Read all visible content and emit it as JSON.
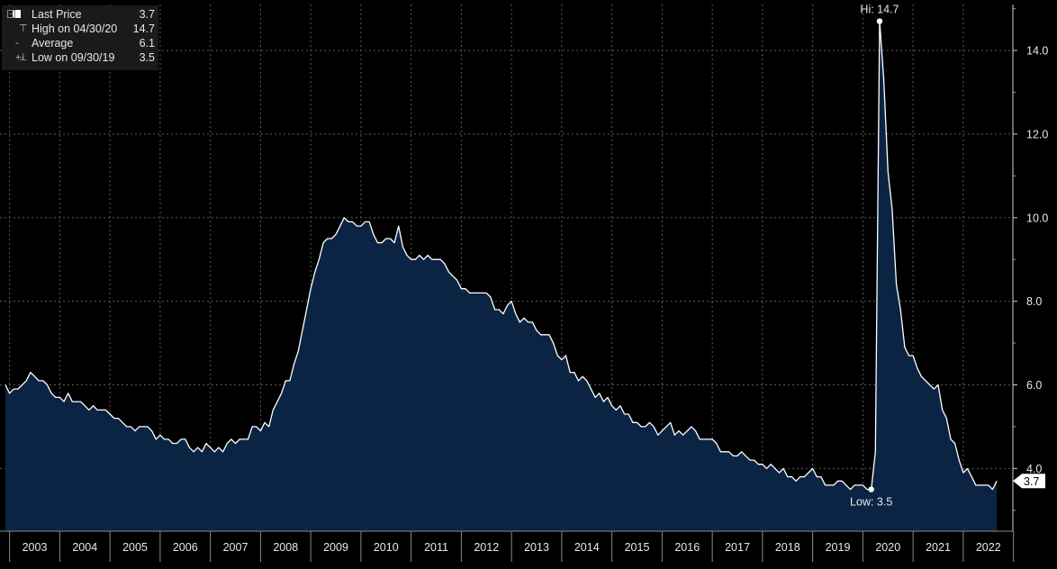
{
  "legend": {
    "rows": [
      {
        "label": "Last Price",
        "value": "3.7",
        "icon": "square-swatch-icon"
      },
      {
        "label": "High on 04/30/20",
        "value": "14.7",
        "icon": "high-marker-icon"
      },
      {
        "label": "Average",
        "value": "6.1",
        "icon": "average-marker-icon"
      },
      {
        "label": "Low on 09/30/19",
        "value": "3.5",
        "icon": "low-marker-icon"
      }
    ]
  },
  "colors": {
    "background": "#000000",
    "area_fill": "#0c2444",
    "line": "#ffffff",
    "grid": "#5a5a5a",
    "text": "#e8e8e8"
  },
  "chart_data": {
    "type": "area",
    "title": "",
    "xlabel": "",
    "ylabel": "",
    "ylim": [
      2.5,
      15.1
    ],
    "y_ticks": [
      "4.0",
      "6.0",
      "8.0",
      "10.0",
      "12.0",
      "14.0"
    ],
    "x_tick_labels": [
      "2003",
      "2004",
      "2005",
      "2006",
      "2007",
      "2008",
      "2009",
      "2010",
      "2011",
      "2012",
      "2013",
      "2014",
      "2015",
      "2016",
      "2017",
      "2018",
      "2019",
      "2020",
      "2021",
      "2022"
    ],
    "grid": true,
    "x_start": "2002-12",
    "x_end": "2022-06",
    "series": [
      {
        "values": [
          6.0,
          5.8,
          5.9,
          5.9,
          6.0,
          6.1,
          6.3,
          6.2,
          6.1,
          6.1,
          6.0,
          5.8,
          5.7,
          5.7,
          5.6,
          5.8,
          5.6,
          5.6,
          5.6,
          5.5,
          5.4,
          5.5,
          5.4,
          5.4,
          5.4,
          5.3,
          5.2,
          5.2,
          5.1,
          5.0,
          5.0,
          4.9,
          5.0,
          5.0,
          5.0,
          4.9,
          4.7,
          4.8,
          4.7,
          4.7,
          4.6,
          4.6,
          4.7,
          4.7,
          4.5,
          4.4,
          4.5,
          4.4,
          4.6,
          4.5,
          4.4,
          4.5,
          4.4,
          4.6,
          4.7,
          4.6,
          4.7,
          4.7,
          4.7,
          5.0,
          5.0,
          4.9,
          5.1,
          5.0,
          5.4,
          5.6,
          5.8,
          6.1,
          6.1,
          6.5,
          6.8,
          7.3,
          7.8,
          8.3,
          8.7,
          9.0,
          9.4,
          9.5,
          9.5,
          9.6,
          9.8,
          10.0,
          9.9,
          9.9,
          9.8,
          9.8,
          9.9,
          9.9,
          9.6,
          9.4,
          9.4,
          9.5,
          9.5,
          9.4,
          9.8,
          9.3,
          9.1,
          9.0,
          9.0,
          9.1,
          9.0,
          9.1,
          9.0,
          9.0,
          9.0,
          8.9,
          8.7,
          8.6,
          8.5,
          8.3,
          8.3,
          8.2,
          8.2,
          8.2,
          8.2,
          8.2,
          8.1,
          7.8,
          7.8,
          7.7,
          7.9,
          8.0,
          7.7,
          7.5,
          7.6,
          7.5,
          7.5,
          7.3,
          7.2,
          7.2,
          7.2,
          7.0,
          6.7,
          6.6,
          6.7,
          6.3,
          6.3,
          6.1,
          6.2,
          6.1,
          5.9,
          5.7,
          5.8,
          5.6,
          5.7,
          5.5,
          5.4,
          5.5,
          5.3,
          5.3,
          5.1,
          5.1,
          5.0,
          5.0,
          5.1,
          5.0,
          4.8,
          4.9,
          5.0,
          5.1,
          4.8,
          4.9,
          4.8,
          4.9,
          5.0,
          4.9,
          4.7,
          4.7,
          4.7,
          4.7,
          4.6,
          4.4,
          4.4,
          4.4,
          4.3,
          4.3,
          4.4,
          4.3,
          4.2,
          4.2,
          4.1,
          4.1,
          4.0,
          4.1,
          4.0,
          3.9,
          4.0,
          3.8,
          3.8,
          3.7,
          3.8,
          3.8,
          3.9,
          4.0,
          3.8,
          3.8,
          3.6,
          3.6,
          3.6,
          3.7,
          3.7,
          3.6,
          3.5,
          3.6,
          3.6,
          3.6,
          3.5,
          3.5,
          4.4,
          14.7,
          13.3,
          11.1,
          10.2,
          8.4,
          7.8,
          6.9,
          6.7,
          6.7,
          6.4,
          6.2,
          6.1,
          6.0,
          5.9,
          6.0,
          5.4,
          5.2,
          4.7,
          4.6,
          4.2,
          3.9,
          4.0,
          3.8,
          3.6,
          3.6,
          3.6,
          3.6,
          3.5,
          3.7
        ]
      }
    ],
    "annotations": {
      "high_label": "Hi: 14.7",
      "low_label": "Low: 3.5",
      "last_value_label": "3.7"
    }
  }
}
